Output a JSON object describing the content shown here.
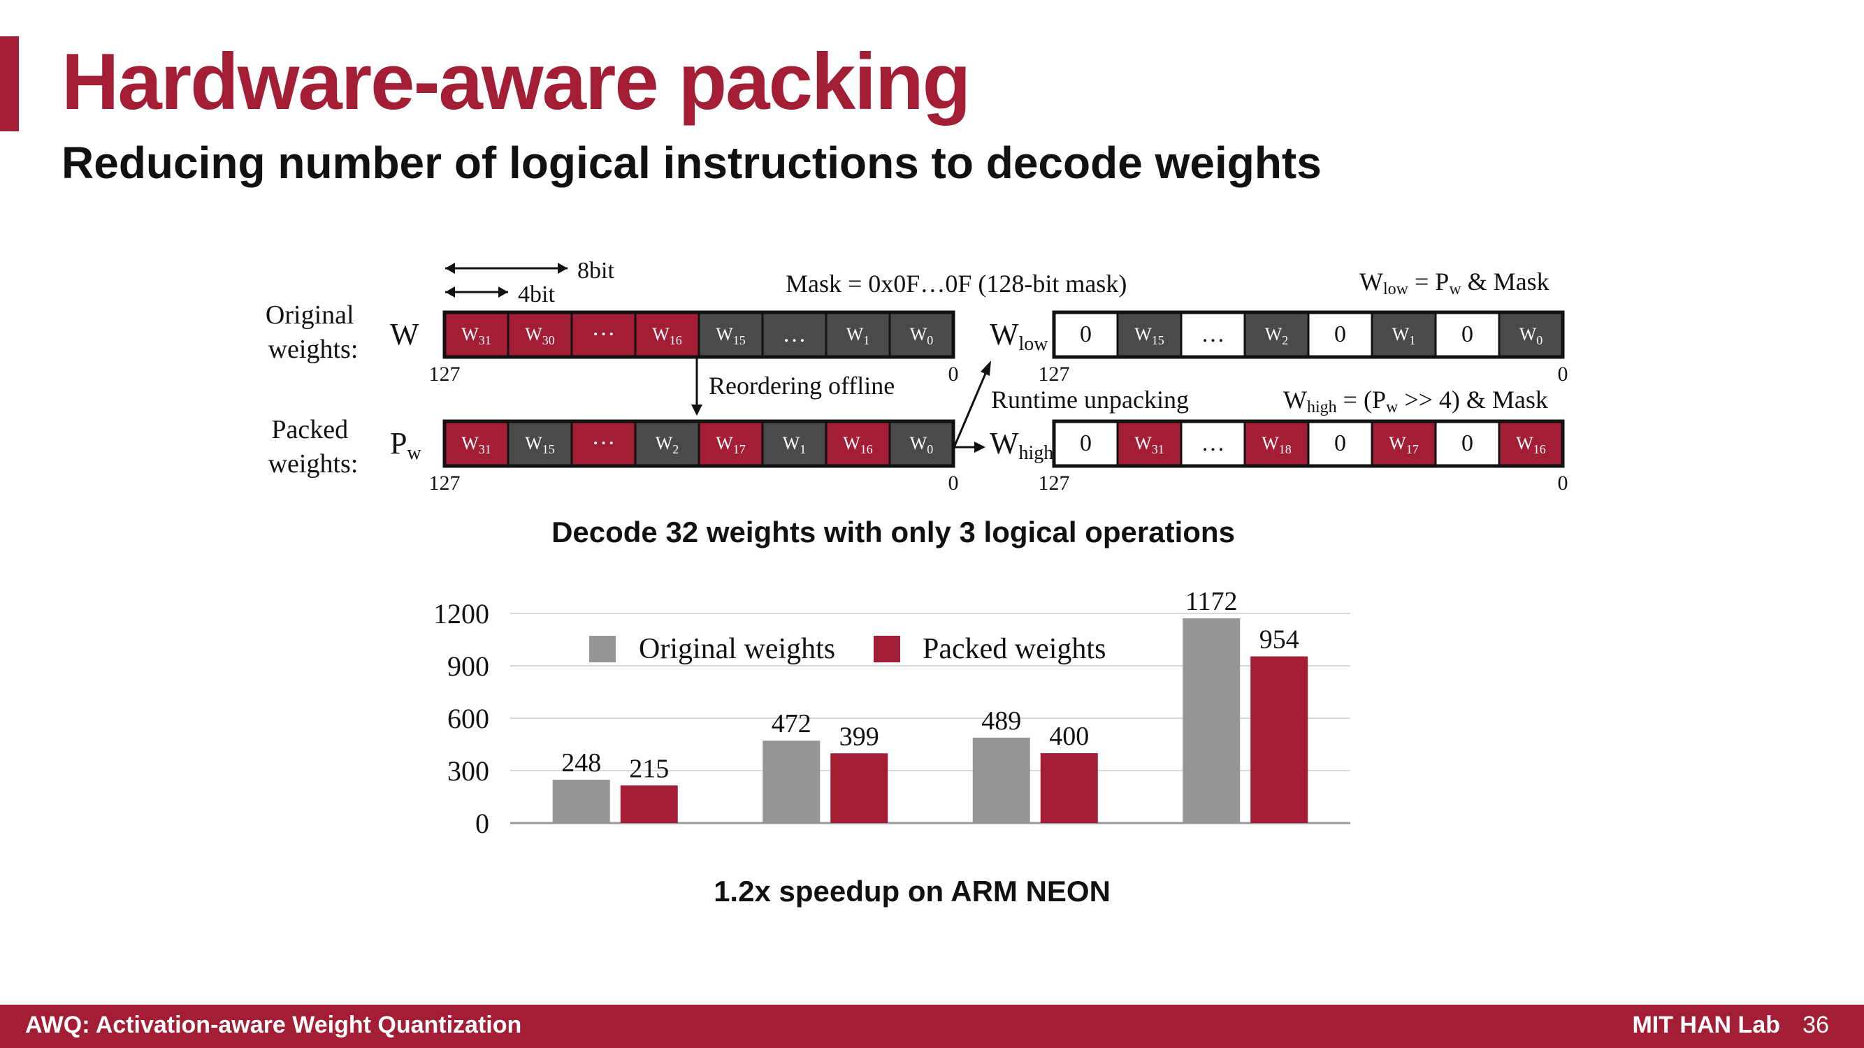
{
  "title": "Hardware-aware packing",
  "subtitle": "Reducing number of logical instructions to decode weights",
  "colors": {
    "accent": "#a31d35",
    "red_cell": "#a31d35",
    "gray_cell": "#4a4a4a",
    "white_cell": "#ffffff",
    "gray_bar": "#969696"
  },
  "diagram": {
    "bit8_label": "8bit",
    "bit4_label": "4bit",
    "original_label": [
      "Original",
      "weights:"
    ],
    "packed_label": [
      "Packed",
      "weights:"
    ],
    "mask_label": "Mask = 0x0F…0F (128-bit mask)",
    "reorder_label": "Reordering offline",
    "runtime_label": "Runtime unpacking",
    "wlow_eq": {
      "w": "W",
      "sub": "low",
      "eq": " = P",
      "sub2": "w",
      "rest": " & Mask"
    },
    "whigh_eq": {
      "w": "W",
      "sub": "high",
      "eq": " = (P",
      "sub2": "w",
      "rest": " >> 4) & Mask"
    },
    "row_w": {
      "name": {
        "main": "W",
        "sub": ""
      },
      "left": "127",
      "right": "0",
      "cells": [
        {
          "main": "W",
          "sub": "31",
          "color": "red"
        },
        {
          "main": "W",
          "sub": "30",
          "color": "red"
        },
        {
          "main": "···",
          "sub": "",
          "color": "red"
        },
        {
          "main": "W",
          "sub": "16",
          "color": "red"
        },
        {
          "main": "W",
          "sub": "15",
          "color": "gray"
        },
        {
          "main": "…",
          "sub": "",
          "color": "gray"
        },
        {
          "main": "W",
          "sub": "1",
          "color": "gray"
        },
        {
          "main": "W",
          "sub": "0",
          "color": "gray"
        }
      ]
    },
    "row_pw": {
      "name": {
        "main": "P",
        "sub": "w"
      },
      "left": "127",
      "right": "0",
      "cells": [
        {
          "main": "W",
          "sub": "31",
          "color": "red"
        },
        {
          "main": "W",
          "sub": "15",
          "color": "gray"
        },
        {
          "main": "···",
          "sub": "",
          "color": "red"
        },
        {
          "main": "W",
          "sub": "2",
          "color": "gray"
        },
        {
          "main": "W",
          "sub": "17",
          "color": "red"
        },
        {
          "main": "W",
          "sub": "1",
          "color": "gray"
        },
        {
          "main": "W",
          "sub": "16",
          "color": "red"
        },
        {
          "main": "W",
          "sub": "0",
          "color": "gray"
        }
      ]
    },
    "row_wlow": {
      "name": {
        "main": "W",
        "sub": "low"
      },
      "left": "127",
      "right": "0",
      "cells": [
        {
          "main": "0",
          "sub": "",
          "color": "white"
        },
        {
          "main": "W",
          "sub": "15",
          "color": "gray"
        },
        {
          "main": "…",
          "sub": "",
          "color": "white"
        },
        {
          "main": "W",
          "sub": "2",
          "color": "gray"
        },
        {
          "main": "0",
          "sub": "",
          "color": "white"
        },
        {
          "main": "W",
          "sub": "1",
          "color": "gray"
        },
        {
          "main": "0",
          "sub": "",
          "color": "white"
        },
        {
          "main": "W",
          "sub": "0",
          "color": "gray"
        }
      ]
    },
    "row_whigh": {
      "name": {
        "main": "W",
        "sub": "high"
      },
      "left": "127",
      "right": "0",
      "cells": [
        {
          "main": "0",
          "sub": "",
          "color": "white"
        },
        {
          "main": "W",
          "sub": "31",
          "color": "red"
        },
        {
          "main": "…",
          "sub": "",
          "color": "white"
        },
        {
          "main": "W",
          "sub": "18",
          "color": "red"
        },
        {
          "main": "0",
          "sub": "",
          "color": "white"
        },
        {
          "main": "W",
          "sub": "17",
          "color": "red"
        },
        {
          "main": "0",
          "sub": "",
          "color": "white"
        },
        {
          "main": "W",
          "sub": "16",
          "color": "red"
        }
      ]
    },
    "caption": "Decode 32 weights with only 3 logical operations"
  },
  "chart_data": {
    "type": "bar",
    "categories": [
      "",
      "",
      "",
      ""
    ],
    "series": [
      {
        "name": "Original weights",
        "color": "#969696",
        "values": [
          248,
          472,
          489,
          1172
        ]
      },
      {
        "name": "Packed weights",
        "color": "#a31d35",
        "values": [
          215,
          399,
          400,
          954
        ]
      }
    ],
    "yticks": [
      "0",
      "300",
      "600",
      "900",
      "1200"
    ],
    "ylim": [
      0,
      1200
    ],
    "grid": true,
    "legend": "top",
    "caption": "1.2x speedup on ARM NEON"
  },
  "footer": {
    "left": "AWQ: Activation-aware Weight Quantization",
    "right": "MIT HAN Lab",
    "page": "36"
  }
}
